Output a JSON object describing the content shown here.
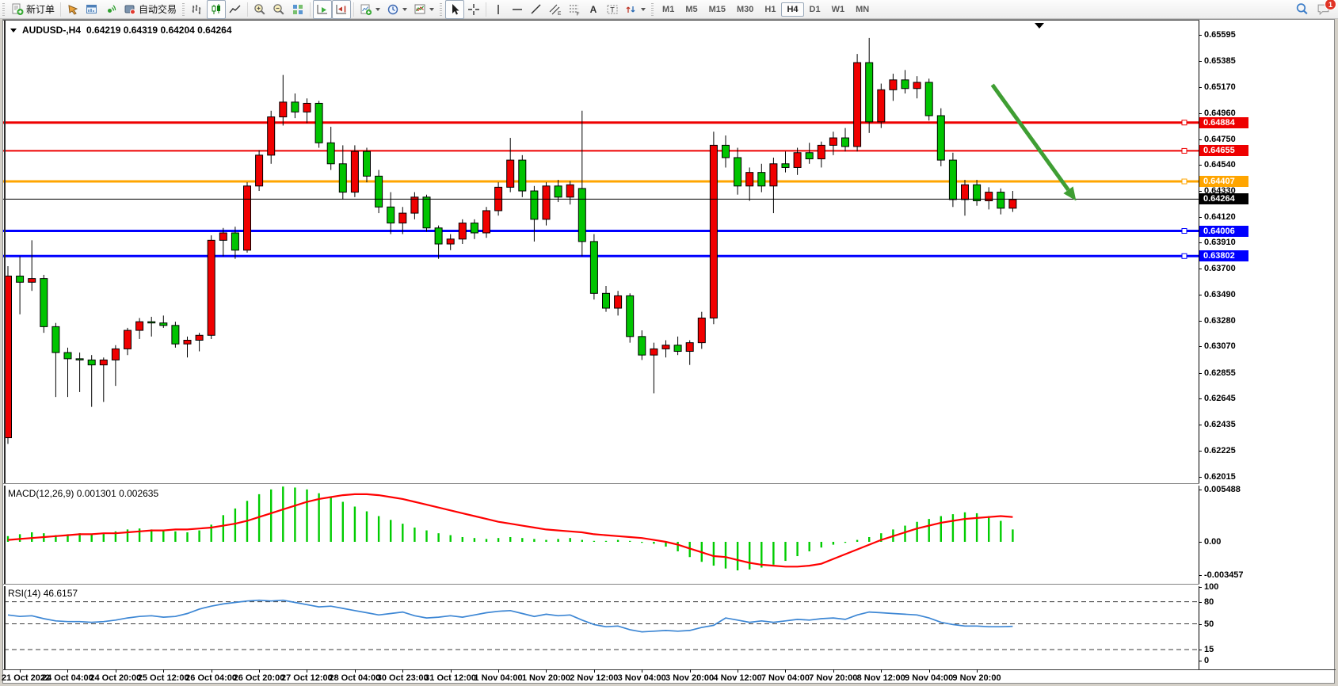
{
  "toolbar": {
    "new_order_label": "新订单",
    "autotrading_label": "自动交易",
    "timeframes": [
      {
        "label": "M1"
      },
      {
        "label": "M5"
      },
      {
        "label": "M15"
      },
      {
        "label": "M30"
      },
      {
        "label": "H1"
      },
      {
        "label": "H4",
        "active": true
      },
      {
        "label": "D1"
      },
      {
        "label": "W1"
      },
      {
        "label": "MN"
      }
    ],
    "notification_count": "1",
    "tool_letters": {
      "channel": "E",
      "fibonacci": "F",
      "text": "A",
      "label": "T"
    }
  },
  "chart": {
    "title_symbol": "AUDUSD-,H4",
    "title_ohlc": "0.64219 0.64319 0.64204 0.64264",
    "macd_label": "MACD(12,26,9)",
    "macd_values": "0.001301 0.002635",
    "rsi_label": "RSI(14)",
    "rsi_value": "46.6157"
  },
  "chart_data": {
    "type": "candlestick",
    "symbol": "AUDUSD",
    "period": "H4",
    "ohlc_display": {
      "open": "0.64219",
      "high": "0.64319",
      "low": "0.64204",
      "close": "0.64264"
    },
    "up_color": "#f00000",
    "down_color": "#00c400",
    "price_axis": {
      "ylim": [
        0.61961,
        0.65711
      ],
      "ticks": [
        "0.65595",
        "0.65385",
        "0.65170",
        "0.64960",
        "0.64750",
        "0.64540",
        "0.64330",
        "0.64120",
        "0.63910",
        "0.63700",
        "0.63490",
        "0.63280",
        "0.63070",
        "0.62855",
        "0.62645",
        "0.62435",
        "0.62225",
        "0.62015"
      ]
    },
    "hlines": [
      {
        "price": 0.64884,
        "label": "0.64884",
        "color": "#ee0000",
        "width": 3,
        "handle": true
      },
      {
        "price": 0.64655,
        "label": "0.64655",
        "color": "#ee0000",
        "width": 2,
        "handle": true
      },
      {
        "price": 0.64407,
        "label": "0.64407",
        "color": "#ffa500",
        "width": 3,
        "handle": true
      },
      {
        "price": 0.64264,
        "label": "0.64264",
        "color": "#000000",
        "width": 1,
        "handle": false,
        "current_price": true
      },
      {
        "price": 0.64006,
        "label": "0.64006",
        "color": "#0000ff",
        "width": 3,
        "handle": true
      },
      {
        "price": 0.63802,
        "label": "0.63802",
        "color": "#0000ff",
        "width": 3,
        "handle": true
      }
    ],
    "annotation_arrow": {
      "x1_bar": 82.3,
      "price1": 0.6519,
      "x2_bar": 89.3,
      "price2": 0.6425,
      "color": "#3f9e33"
    },
    "candles": [
      [
        0.6233,
        0.6372,
        0.6228,
        0.6364
      ],
      [
        0.6364,
        0.638,
        0.6333,
        0.6359
      ],
      [
        0.6359,
        0.6393,
        0.6352,
        0.6362
      ],
      [
        0.6362,
        0.6365,
        0.6318,
        0.6323
      ],
      [
        0.6323,
        0.6326,
        0.6266,
        0.6302
      ],
      [
        0.6302,
        0.6306,
        0.6266,
        0.6297
      ],
      [
        0.6297,
        0.6302,
        0.627,
        0.6296
      ],
      [
        0.6296,
        0.63,
        0.6258,
        0.6292
      ],
      [
        0.6292,
        0.6298,
        0.6262,
        0.6296
      ],
      [
        0.6296,
        0.6308,
        0.6275,
        0.6305
      ],
      [
        0.6305,
        0.6322,
        0.63,
        0.632
      ],
      [
        0.632,
        0.633,
        0.6313,
        0.6327
      ],
      [
        0.6327,
        0.6331,
        0.6315,
        0.6326
      ],
      [
        0.6326,
        0.6332,
        0.6322,
        0.6324
      ],
      [
        0.6324,
        0.6327,
        0.6306,
        0.6309
      ],
      [
        0.6309,
        0.6315,
        0.6298,
        0.6312
      ],
      [
        0.6312,
        0.6318,
        0.6303,
        0.6316
      ],
      [
        0.6316,
        0.6397,
        0.6313,
        0.6393
      ],
      [
        0.6393,
        0.6403,
        0.638,
        0.6399
      ],
      [
        0.6399,
        0.6404,
        0.6378,
        0.6385
      ],
      [
        0.6385,
        0.644,
        0.6383,
        0.6437
      ],
      [
        0.6437,
        0.6466,
        0.6433,
        0.6462
      ],
      [
        0.6462,
        0.6498,
        0.6455,
        0.6493
      ],
      [
        0.6493,
        0.6527,
        0.6486,
        0.6505
      ],
      [
        0.6505,
        0.6512,
        0.6492,
        0.6497
      ],
      [
        0.6497,
        0.6508,
        0.6488,
        0.6504
      ],
      [
        0.6504,
        0.6506,
        0.6468,
        0.6472
      ],
      [
        0.6472,
        0.6485,
        0.645,
        0.6455
      ],
      [
        0.6455,
        0.647,
        0.6426,
        0.6432
      ],
      [
        0.6432,
        0.647,
        0.6428,
        0.6465
      ],
      [
        0.6465,
        0.6468,
        0.644,
        0.6445
      ],
      [
        0.6445,
        0.645,
        0.6415,
        0.642
      ],
      [
        0.642,
        0.6432,
        0.6398,
        0.6407
      ],
      [
        0.6407,
        0.642,
        0.6398,
        0.6415
      ],
      [
        0.6415,
        0.6432,
        0.641,
        0.6428
      ],
      [
        0.6428,
        0.643,
        0.64,
        0.6403
      ],
      [
        0.6403,
        0.6405,
        0.6378,
        0.639
      ],
      [
        0.639,
        0.6398,
        0.6385,
        0.6394
      ],
      [
        0.6394,
        0.641,
        0.639,
        0.6407
      ],
      [
        0.6407,
        0.641,
        0.6394,
        0.6399
      ],
      [
        0.6399,
        0.642,
        0.6395,
        0.6417
      ],
      [
        0.6417,
        0.644,
        0.6413,
        0.6436
      ],
      [
        0.6436,
        0.6476,
        0.6432,
        0.6458
      ],
      [
        0.6458,
        0.6462,
        0.6428,
        0.6433
      ],
      [
        0.6433,
        0.6437,
        0.6392,
        0.641
      ],
      [
        0.641,
        0.644,
        0.6405,
        0.6437
      ],
      [
        0.6437,
        0.6442,
        0.6424,
        0.6428
      ],
      [
        0.6428,
        0.6441,
        0.6422,
        0.6438
      ],
      [
        0.6435,
        0.6498,
        0.638,
        0.6392
      ],
      [
        0.6392,
        0.6398,
        0.6345,
        0.635
      ],
      [
        0.635,
        0.6356,
        0.6335,
        0.6338
      ],
      [
        0.6338,
        0.6352,
        0.6332,
        0.6348
      ],
      [
        0.6348,
        0.635,
        0.631,
        0.6315
      ],
      [
        0.6315,
        0.632,
        0.6296,
        0.63
      ],
      [
        0.63,
        0.631,
        0.6269,
        0.6305
      ],
      [
        0.6305,
        0.6312,
        0.6298,
        0.6308
      ],
      [
        0.6308,
        0.6315,
        0.63,
        0.6303
      ],
      [
        0.6303,
        0.6312,
        0.6292,
        0.631
      ],
      [
        0.631,
        0.6335,
        0.6305,
        0.633
      ],
      [
        0.633,
        0.6481,
        0.6325,
        0.647
      ],
      [
        0.647,
        0.6478,
        0.6452,
        0.646
      ],
      [
        0.646,
        0.6468,
        0.643,
        0.6437
      ],
      [
        0.6437,
        0.6452,
        0.6425,
        0.6448
      ],
      [
        0.6448,
        0.6455,
        0.6432,
        0.6437
      ],
      [
        0.6437,
        0.646,
        0.6415,
        0.6455
      ],
      [
        0.6455,
        0.6465,
        0.6448,
        0.6452
      ],
      [
        0.6452,
        0.6468,
        0.6446,
        0.6464
      ],
      [
        0.6464,
        0.6472,
        0.6455,
        0.6459
      ],
      [
        0.6459,
        0.6473,
        0.6452,
        0.647
      ],
      [
        0.647,
        0.6481,
        0.6462,
        0.6476
      ],
      [
        0.6476,
        0.6484,
        0.6465,
        0.6469
      ],
      [
        0.6469,
        0.6544,
        0.6465,
        0.6537
      ],
      [
        0.6537,
        0.6557,
        0.648,
        0.6489
      ],
      [
        0.6489,
        0.652,
        0.6484,
        0.6515
      ],
      [
        0.6515,
        0.6528,
        0.6506,
        0.6523
      ],
      [
        0.6523,
        0.6531,
        0.6512,
        0.6516
      ],
      [
        0.6516,
        0.6526,
        0.6508,
        0.6521
      ],
      [
        0.6521,
        0.6524,
        0.649,
        0.6494
      ],
      [
        0.6494,
        0.65,
        0.6453,
        0.6458
      ],
      [
        0.6458,
        0.6464,
        0.642,
        0.6426
      ],
      [
        0.6426,
        0.6442,
        0.6413,
        0.6438
      ],
      [
        0.6438,
        0.6442,
        0.6421,
        0.6425
      ],
      [
        0.6425,
        0.6436,
        0.6418,
        0.6432
      ],
      [
        0.6432,
        0.6435,
        0.6414,
        0.6419
      ],
      [
        0.6419,
        0.6433,
        0.6416,
        0.6426
      ]
    ],
    "macd": {
      "label": "MACD(12,26,9)",
      "values_label": "0.001301 0.002635",
      "hist_color": "#00cc00",
      "signal_color": "#ff0000",
      "ylim": [
        -0.004407,
        0.005987
      ],
      "axis_ticks": [
        {
          "label": "0.005488",
          "value": 0.005488
        },
        {
          "label": "0.00",
          "value": 0
        },
        {
          "label": "-0.003457",
          "value": -0.003457
        }
      ],
      "hist": [
        0.0006,
        0.0008,
        0.001,
        0.0009,
        0.0007,
        0.0008,
        0.0009,
        0.0008,
        0.0009,
        0.0011,
        0.0013,
        0.0014,
        0.0013,
        0.0012,
        0.0011,
        0.001,
        0.0012,
        0.0018,
        0.0028,
        0.0035,
        0.0043,
        0.005,
        0.0055,
        0.0058,
        0.0057,
        0.0055,
        0.0051,
        0.0047,
        0.0042,
        0.0037,
        0.0032,
        0.0027,
        0.0023,
        0.0019,
        0.0015,
        0.0012,
        0.0009,
        0.0007,
        0.0005,
        0.0004,
        0.0003,
        0.0004,
        0.0005,
        0.0004,
        0.0003,
        0.0002,
        0.0003,
        0.0004,
        0.0002,
        0.0001,
        0.0001,
        0.0002,
        0.0001,
        -0.0001,
        -0.0002,
        -0.0005,
        -0.001,
        -0.0016,
        -0.0021,
        -0.0025,
        -0.0028,
        -0.003,
        -0.0029,
        -0.0027,
        -0.0024,
        -0.002,
        -0.0015,
        -0.001,
        -0.0006,
        -0.0003,
        -0.0001,
        0.0002,
        0.0005,
        0.0009,
        0.0013,
        0.0017,
        0.0021,
        0.0024,
        0.0027,
        0.0029,
        0.0031,
        0.003,
        0.0027,
        0.0022,
        0.0013
      ],
      "signal": [
        0.0002,
        0.0003,
        0.0004,
        0.0005,
        0.0006,
        0.0007,
        0.0008,
        0.0008,
        0.0009,
        0.0009,
        0.001,
        0.0011,
        0.0012,
        0.0012,
        0.0013,
        0.0013,
        0.0014,
        0.0015,
        0.0017,
        0.0019,
        0.0022,
        0.0026,
        0.003,
        0.0034,
        0.0038,
        0.0042,
        0.0045,
        0.0047,
        0.0049,
        0.005,
        0.005,
        0.0049,
        0.0047,
        0.0045,
        0.0042,
        0.0039,
        0.0036,
        0.0033,
        0.003,
        0.0027,
        0.0024,
        0.0021,
        0.0019,
        0.0017,
        0.0015,
        0.0013,
        0.0012,
        0.0011,
        0.001,
        0.0008,
        0.0007,
        0.0006,
        0.0005,
        0.0004,
        0.0002,
        0.0,
        -0.0003,
        -0.0007,
        -0.0011,
        -0.0015,
        -0.0016,
        -0.0019,
        -0.0022,
        -0.0024,
        -0.0025,
        -0.0026,
        -0.0026,
        -0.0025,
        -0.0023,
        -0.0018,
        -0.0013,
        -0.0008,
        -0.0003,
        0.0002,
        0.0006,
        0.001,
        0.0014,
        0.0017,
        0.002,
        0.0022,
        0.0024,
        0.0025,
        0.0026,
        0.0027,
        0.0026
      ]
    },
    "rsi": {
      "label": "RSI(14)",
      "value_label": "46.6157",
      "color": "#3c86d4",
      "levels": [
        80,
        50,
        15
      ],
      "axis_ticks": [
        {
          "label": "100",
          "value": 100
        },
        {
          "label": "80",
          "value": 80
        },
        {
          "label": "50",
          "value": 50
        },
        {
          "label": "15",
          "value": 15
        },
        {
          "label": "0",
          "value": 0
        }
      ],
      "values": [
        62,
        60,
        61,
        57,
        54,
        53,
        53,
        52,
        53,
        55,
        58,
        60,
        61,
        59,
        60,
        64,
        70,
        74,
        77,
        79,
        81,
        82,
        81,
        82,
        79,
        76,
        73,
        74,
        71,
        68,
        65,
        62,
        64,
        66,
        61,
        58,
        59,
        61,
        59,
        62,
        65,
        67,
        68,
        64,
        60,
        63,
        61,
        62,
        55,
        49,
        46,
        47,
        42,
        39,
        40,
        41,
        40,
        41,
        45,
        48,
        58,
        55,
        52,
        54,
        52,
        54,
        56,
        55,
        57,
        58,
        56,
        62,
        66,
        65,
        64,
        63,
        62,
        58,
        52,
        49,
        47,
        47,
        46,
        46,
        46.6
      ]
    },
    "time_axis": {
      "labels": [
        "21 Oct 2022",
        "24 Oct 04:00",
        "24 Oct 20:00",
        "25 Oct 12:00",
        "26 Oct 04:00",
        "26 Oct 20:00",
        "27 Oct 12:00",
        "28 Oct 04:00",
        "30 Oct 23:00",
        "31 Oct 12:00",
        "1 Nov 04:00",
        "1 Nov 20:00",
        "2 Nov 12:00",
        "3 Nov 04:00",
        "3 Nov 20:00",
        "4 Nov 12:00",
        "7 Nov 04:00",
        "7 Nov 20:00",
        "8 Nov 12:00",
        "9 Nov 04:00",
        "9 Nov 20:00"
      ]
    }
  }
}
